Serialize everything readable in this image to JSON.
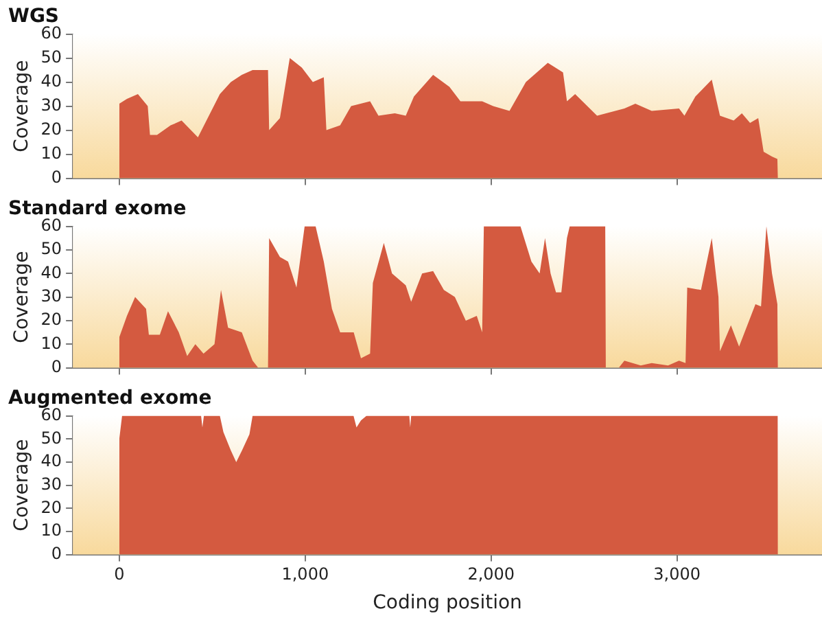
{
  "chart_data": [
    {
      "type": "area",
      "title": "WGS",
      "ylabel": "Coverage",
      "color": "#d45a40",
      "tick_labels": "y",
      "xlim": [
        -250,
        3780
      ],
      "ylim": [
        0,
        60
      ],
      "xticks": [
        {
          "value": 0,
          "label": null
        },
        {
          "value": 1000,
          "label": null
        },
        {
          "value": 2000,
          "label": null
        },
        {
          "value": 3000,
          "label": null
        }
      ],
      "yticks": [
        0,
        10,
        20,
        30,
        40,
        50,
        60
      ],
      "x": [
        0,
        41,
        100,
        153,
        165,
        203,
        276,
        335,
        423,
        482,
        541,
        600,
        659,
        717,
        800,
        806,
        864,
        917,
        982,
        1041,
        1100,
        1114,
        1188,
        1247,
        1349,
        1394,
        1482,
        1541,
        1585,
        1688,
        1776,
        1835,
        1952,
        2011,
        2099,
        2187,
        2305,
        2387,
        2408,
        2452,
        2570,
        2717,
        2776,
        2864,
        3011,
        3040,
        3099,
        3187,
        3231,
        3305,
        3349,
        3393,
        3437,
        3466,
        3511,
        3540,
        3543
      ],
      "values": [
        31,
        33,
        35,
        30,
        18,
        18,
        22,
        24,
        17,
        26,
        35,
        40,
        43,
        45,
        45,
        20,
        25,
        50,
        46,
        40,
        42,
        20,
        22,
        30,
        32,
        26,
        27,
        26,
        34,
        43,
        38,
        32,
        32,
        30,
        28,
        40,
        48,
        44,
        32,
        35,
        26,
        29,
        31,
        28,
        29,
        26,
        34,
        41,
        26,
        24,
        27,
        23,
        25,
        11,
        9,
        8,
        0
      ]
    },
    {
      "type": "area",
      "title": "Standard exome",
      "ylabel": "Coverage",
      "color": "#d45a40",
      "tick_labels": "y",
      "xlim": [
        -250,
        3780
      ],
      "ylim": [
        0,
        60
      ],
      "xticks": [
        {
          "value": 0,
          "label": null
        },
        {
          "value": 1000,
          "label": null
        },
        {
          "value": 2000,
          "label": null
        },
        {
          "value": 3000,
          "label": null
        }
      ],
      "yticks": [
        0,
        10,
        20,
        30,
        40,
        50,
        60
      ],
      "x": [
        0,
        41,
        85,
        144,
        159,
        218,
        262,
        320,
        365,
        409,
        453,
        512,
        547,
        585,
        659,
        717,
        747,
        800,
        806,
        864,
        908,
        953,
        997,
        1056,
        1100,
        1144,
        1188,
        1261,
        1300,
        1349,
        1364,
        1423,
        1467,
        1541,
        1570,
        1629,
        1688,
        1746,
        1805,
        1864,
        1923,
        1952,
        1961,
        2158,
        2217,
        2261,
        2290,
        2320,
        2349,
        2378,
        2408,
        2423,
        2614,
        2617,
        2687,
        2717,
        2805,
        2864,
        2952,
        3011,
        3046,
        3055,
        3129,
        3187,
        3223,
        3231,
        3290,
        3334,
        3422,
        3452,
        3481,
        3511,
        3540,
        3543
      ],
      "values": [
        13,
        22,
        30,
        25,
        14,
        14,
        24,
        15,
        5,
        10,
        6,
        10,
        33,
        17,
        15,
        3,
        0,
        0,
        55,
        47,
        45,
        34,
        60,
        60,
        45,
        25,
        15,
        15,
        4,
        6,
        36,
        53,
        40,
        35,
        28,
        40,
        41,
        33,
        30,
        20,
        22,
        15,
        60,
        60,
        45,
        40,
        55,
        40,
        32,
        32,
        55,
        60,
        60,
        0,
        0,
        3,
        1,
        2,
        1,
        3,
        2,
        34,
        33,
        55,
        30,
        7,
        18,
        9,
        27,
        26,
        60,
        40,
        27,
        0
      ]
    },
    {
      "type": "area",
      "title": "Augmented exome",
      "ylabel": "Coverage",
      "xlabel": "Coding position",
      "color": "#d45a40",
      "xlim": [
        -250,
        3780
      ],
      "ylim": [
        0,
        60
      ],
      "xticks": [
        0,
        {
          "value": 1000,
          "label": "1,000"
        },
        {
          "value": 2000,
          "label": "2,000"
        },
        {
          "value": 3000,
          "label": "3,000"
        }
      ],
      "yticks": [
        0,
        10,
        20,
        30,
        40,
        50,
        60
      ],
      "x": [
        0,
        15,
        440,
        447,
        455,
        541,
        560,
        600,
        629,
        660,
        700,
        717,
        1260,
        1276,
        1300,
        1330,
        1560,
        1565,
        1570,
        3542,
        3543
      ],
      "values": [
        50,
        60,
        60,
        55,
        60,
        60,
        53,
        45,
        40,
        45,
        52,
        60,
        60,
        55,
        58,
        60,
        60,
        55,
        60,
        60,
        0
      ]
    }
  ]
}
